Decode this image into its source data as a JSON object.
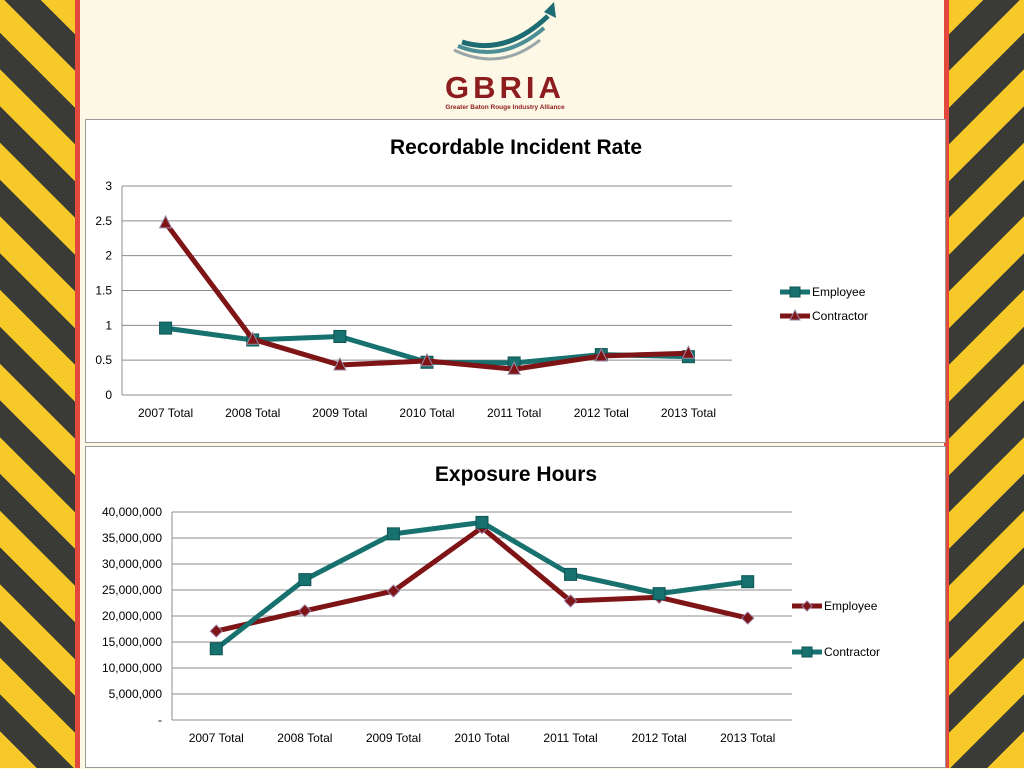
{
  "logo": {
    "name": "GBRIA",
    "tagline": "Greater Baton Rouge Industry Alliance"
  },
  "colors": {
    "stripe_yellow": "#f7c928",
    "stripe_dark": "#3a3a36",
    "border_red": "#e2483c",
    "series_teal": "#16716f",
    "series_maroon": "#7e1416",
    "logo_red": "#8c1c1e"
  },
  "chart_data": [
    {
      "type": "line",
      "title": "Recordable Incident Rate",
      "categories": [
        "2007 Total",
        "2008 Total",
        "2009 Total",
        "2010 Total",
        "2011 Total",
        "2012 Total",
        "2013 Total"
      ],
      "y_ticks": [
        "0",
        "0.5",
        "1",
        "1.5",
        "2",
        "2.5",
        "3"
      ],
      "ylim": [
        0,
        3
      ],
      "grid": true,
      "legend_position": "right",
      "series": [
        {
          "name": "Employee",
          "marker": "square",
          "color": "#16716f",
          "values": [
            0.96,
            0.79,
            0.84,
            0.47,
            0.46,
            0.58,
            0.55
          ]
        },
        {
          "name": "Contractor",
          "marker": "triangle",
          "color": "#7e1416",
          "values": [
            2.47,
            0.8,
            0.43,
            0.49,
            0.37,
            0.56,
            0.6
          ]
        }
      ]
    },
    {
      "type": "line",
      "title": "Exposure Hours",
      "categories": [
        "2007 Total",
        "2008 Total",
        "2009 Total",
        "2010 Total",
        "2011 Total",
        "2012 Total",
        "2013 Total"
      ],
      "y_ticks": [
        "-",
        "5,000,000",
        "10,000,000",
        "15,000,000",
        "20,000,000",
        "25,000,000",
        "30,000,000",
        "35,000,000",
        "40,000,000"
      ],
      "ylim": [
        0,
        40000000
      ],
      "grid": true,
      "legend_position": "right",
      "series": [
        {
          "name": "Employee",
          "marker": "diamond",
          "color": "#7e1416",
          "values": [
            17100000,
            21000000,
            24800000,
            37000000,
            22900000,
            23600000,
            19600000
          ]
        },
        {
          "name": "Contractor",
          "marker": "square",
          "color": "#16716f",
          "values": [
            13700000,
            27000000,
            35800000,
            38000000,
            28000000,
            24300000,
            26600000
          ]
        }
      ]
    }
  ]
}
